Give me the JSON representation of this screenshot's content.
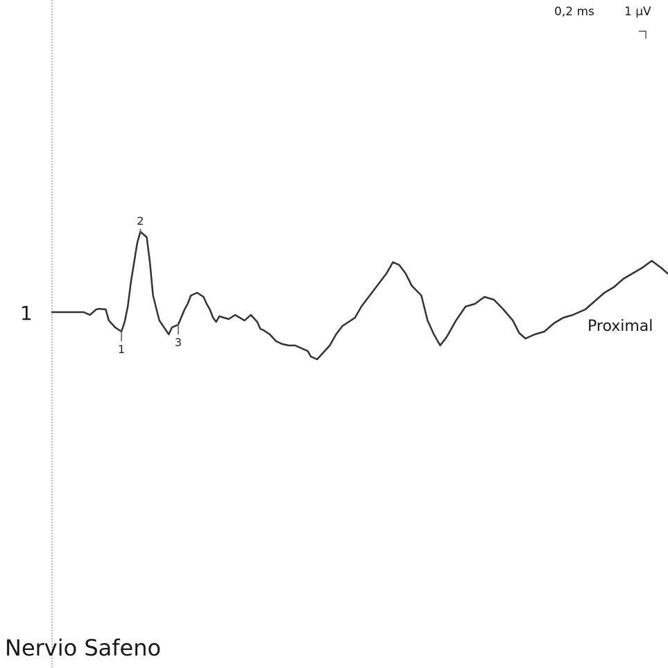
{
  "scale": {
    "time_label": "0,2 ms",
    "amplitude_label": "1 µV"
  },
  "trace": {
    "number": "1",
    "label": "Proximal"
  },
  "title": "Nervio Safeno",
  "chart_data": {
    "type": "line",
    "title": "Nervio Safeno",
    "x_unit": "ms",
    "y_unit": "µV",
    "x_division": "0,2 ms",
    "y_division": "1 µV",
    "grid": false,
    "series": [
      {
        "name": "Proximal",
        "x": [
          0.0,
          0.05,
          0.1,
          0.12,
          0.13,
          0.14,
          0.15,
          0.17,
          0.18,
          0.2,
          0.22,
          0.23,
          0.24,
          0.25,
          0.27,
          0.28,
          0.3,
          0.31,
          0.32,
          0.34,
          0.37,
          0.38,
          0.4,
          0.42,
          0.43,
          0.44,
          0.46,
          0.48,
          0.49,
          0.5,
          0.51,
          0.52,
          0.53,
          0.56,
          0.58,
          0.61,
          0.63,
          0.65,
          0.66,
          0.67,
          0.69,
          0.71,
          0.73,
          0.75,
          0.77,
          0.79,
          0.81,
          0.82,
          0.84,
          0.86,
          0.88,
          0.9,
          0.92,
          0.94,
          0.96,
          0.98,
          1.0,
          1.02,
          1.04,
          1.06,
          1.08,
          1.1,
          1.12,
          1.14,
          1.17,
          1.19,
          1.21,
          1.23,
          1.25,
          1.28,
          1.31,
          1.34,
          1.37,
          1.4,
          1.43,
          1.46,
          1.48,
          1.5,
          1.53,
          1.56,
          1.59,
          1.62,
          1.65,
          1.69,
          1.72,
          1.75,
          1.78,
          1.81,
          1.84,
          1.87,
          1.9,
          1.93,
          1.96
        ],
        "y": [
          0.0,
          0.0,
          0.0,
          -0.1,
          0.0,
          0.1,
          0.12,
          0.1,
          -0.3,
          -0.55,
          -0.7,
          -0.35,
          0.2,
          1.1,
          2.5,
          2.9,
          2.7,
          1.8,
          0.6,
          -0.3,
          -0.8,
          -0.55,
          -0.45,
          0.1,
          0.3,
          0.6,
          0.7,
          0.55,
          0.3,
          0.1,
          -0.2,
          -0.35,
          -0.15,
          -0.25,
          -0.1,
          -0.3,
          -0.1,
          -0.35,
          -0.6,
          -0.65,
          -0.8,
          -1.05,
          -1.15,
          -1.2,
          -1.2,
          -1.3,
          -1.4,
          -1.6,
          -1.7,
          -1.45,
          -1.2,
          -0.8,
          -0.5,
          -0.35,
          -0.2,
          0.2,
          0.5,
          0.8,
          1.1,
          1.4,
          1.8,
          1.7,
          1.4,
          0.95,
          0.6,
          -0.3,
          -0.8,
          -1.2,
          -0.9,
          -0.3,
          0.2,
          0.3,
          0.55,
          0.45,
          0.1,
          -0.3,
          -0.75,
          -0.95,
          -0.8,
          -0.7,
          -0.4,
          -0.2,
          -0.1,
          0.1,
          0.4,
          0.7,
          0.9,
          1.2,
          1.4,
          1.6,
          1.85,
          1.6,
          1.3
        ]
      }
    ],
    "markers": [
      {
        "label": "1",
        "x": 0.22
      },
      {
        "label": "2",
        "x": 0.28
      },
      {
        "label": "3",
        "x": 0.4
      }
    ]
  }
}
